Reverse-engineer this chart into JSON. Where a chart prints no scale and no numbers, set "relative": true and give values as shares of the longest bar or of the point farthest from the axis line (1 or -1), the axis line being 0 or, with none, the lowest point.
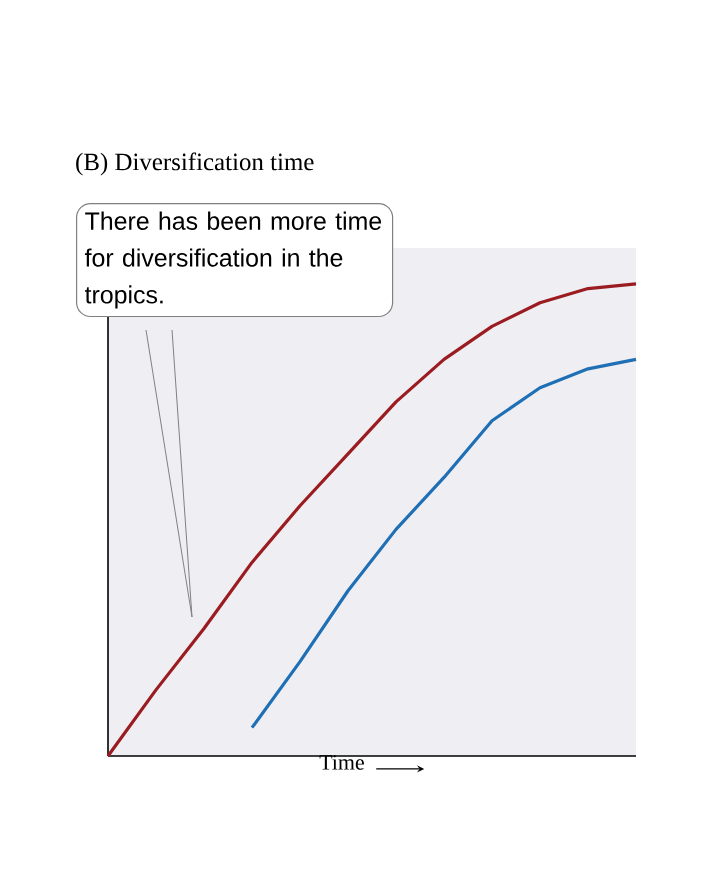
{
  "chart_data": {
    "type": "line",
    "title": "(B)  Diversification time",
    "xlabel": "Time",
    "relative": true,
    "categories": [
      null,
      null,
      null,
      null,
      null,
      null,
      null,
      null,
      null,
      null,
      null,
      null
    ],
    "series": [
      {
        "color": "#9b1c20",
        "values": [
          0,
          0.14,
          0.27,
          0.41,
          0.53,
          0.64,
          0.75,
          0.84,
          0.91,
          0.96,
          0.99,
          1
        ]
      },
      {
        "color": "#1f6fb5",
        "values": [
          null,
          null,
          null,
          0.06,
          0.2,
          0.35,
          0.48,
          0.59,
          0.71,
          0.78,
          0.82,
          0.84
        ]
      }
    ],
    "annotations": [
      "There has been more time for diversification in the tropics."
    ]
  }
}
